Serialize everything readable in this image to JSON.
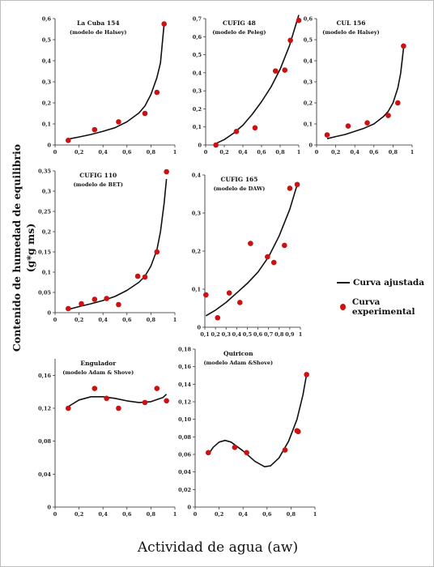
{
  "figure": {
    "ylabel_line1": "Contenido de humedad de equilibrio",
    "ylabel_line2": "(g*g ms)",
    "xlabel": "Actividad de agua (aw)",
    "legend": {
      "fit_label": "Curva ajustada",
      "exp_label": "Curva experimental",
      "line_color": "#111111",
      "point_color": "#cc1111"
    }
  },
  "chart_data": [
    {
      "type": "scatter",
      "title": "La Cuba 154",
      "subtitle": "(modelo de Halsey)",
      "xlim": [
        0,
        1
      ],
      "ylim": [
        0,
        0.6
      ],
      "xticks": [
        0,
        0.2,
        0.4,
        0.6,
        0.8,
        1
      ],
      "xtick_labels": [
        "0",
        "0,2",
        "0,4",
        "0,6",
        "0,8",
        "1"
      ],
      "yticks": [
        0,
        0.1,
        0.2,
        0.3,
        0.4,
        0.5,
        0.6
      ],
      "ytick_labels": [
        "0",
        "0,1",
        "0,2",
        "0,3",
        "0,4",
        "0,5",
        "0,6"
      ],
      "points": [
        [
          0.11,
          0.022
        ],
        [
          0.33,
          0.073
        ],
        [
          0.53,
          0.11
        ],
        [
          0.75,
          0.15
        ],
        [
          0.85,
          0.25
        ],
        [
          0.91,
          0.575
        ]
      ],
      "curve": [
        [
          0.11,
          0.028
        ],
        [
          0.2,
          0.038
        ],
        [
          0.3,
          0.05
        ],
        [
          0.4,
          0.065
        ],
        [
          0.5,
          0.082
        ],
        [
          0.6,
          0.11
        ],
        [
          0.7,
          0.152
        ],
        [
          0.75,
          0.185
        ],
        [
          0.8,
          0.24
        ],
        [
          0.85,
          0.32
        ],
        [
          0.88,
          0.39
        ],
        [
          0.91,
          0.575
        ]
      ]
    },
    {
      "type": "scatter",
      "title": "CUFIG 48",
      "subtitle": "(modelo de Peleg)",
      "xlim": [
        0,
        1
      ],
      "ylim": [
        0,
        0.7
      ],
      "xticks": [
        0,
        0.2,
        0.4,
        0.6,
        0.8,
        1
      ],
      "xtick_labels": [
        "0",
        "0,2",
        "0,4",
        "0,6",
        "0,8",
        "1"
      ],
      "yticks": [
        0,
        0.1,
        0.2,
        0.3,
        0.4,
        0.5,
        0.6,
        0.7
      ],
      "ytick_labels": [
        "0",
        "0,1",
        "0,2",
        "0,3",
        "0,4",
        "0,5",
        "0,6",
        "0,7"
      ],
      "points": [
        [
          0.11,
          0.0
        ],
        [
          0.33,
          0.075
        ],
        [
          0.53,
          0.095
        ],
        [
          0.75,
          0.41
        ],
        [
          0.85,
          0.415
        ],
        [
          0.91,
          0.58
        ],
        [
          1.0,
          0.69
        ]
      ],
      "curve": [
        [
          0.11,
          0.008
        ],
        [
          0.2,
          0.03
        ],
        [
          0.3,
          0.065
        ],
        [
          0.4,
          0.11
        ],
        [
          0.5,
          0.17
        ],
        [
          0.6,
          0.24
        ],
        [
          0.7,
          0.32
        ],
        [
          0.8,
          0.42
        ],
        [
          0.9,
          0.55
        ],
        [
          1.0,
          0.72
        ]
      ]
    },
    {
      "type": "scatter",
      "title": "CUL 156",
      "subtitle": "(modelo de Halsey)",
      "xlim": [
        0,
        1
      ],
      "ylim": [
        0,
        0.6
      ],
      "xticks": [
        0,
        0.2,
        0.4,
        0.6,
        0.8,
        1
      ],
      "xtick_labels": [
        "0",
        "0,2",
        "0,4",
        "0,6",
        "0,8",
        "1"
      ],
      "yticks": [
        0,
        0.1,
        0.2,
        0.3,
        0.4,
        0.5,
        0.6
      ],
      "ytick_labels": [
        "0",
        "0,1",
        "0,2",
        "0,3",
        "0,4",
        "0,5",
        "0,6"
      ],
      "points": [
        [
          0.11,
          0.048
        ],
        [
          0.33,
          0.09
        ],
        [
          0.53,
          0.105
        ],
        [
          0.75,
          0.14
        ],
        [
          0.85,
          0.2
        ],
        [
          0.91,
          0.47
        ]
      ],
      "curve": [
        [
          0.11,
          0.03
        ],
        [
          0.2,
          0.04
        ],
        [
          0.3,
          0.05
        ],
        [
          0.4,
          0.065
        ],
        [
          0.5,
          0.08
        ],
        [
          0.6,
          0.1
        ],
        [
          0.7,
          0.135
        ],
        [
          0.75,
          0.16
        ],
        [
          0.8,
          0.2
        ],
        [
          0.85,
          0.27
        ],
        [
          0.88,
          0.34
        ],
        [
          0.91,
          0.46
        ]
      ]
    },
    {
      "type": "scatter",
      "title": "CUFIG 110",
      "subtitle": "(modelo de BET)",
      "xlim": [
        0,
        1
      ],
      "ylim": [
        0,
        0.35
      ],
      "xticks": [
        0,
        0.2,
        0.4,
        0.6,
        0.8,
        1
      ],
      "xtick_labels": [
        "0",
        "0,2",
        "0,4",
        "0,6",
        "0,8",
        "1"
      ],
      "yticks": [
        0,
        0.05,
        0.1,
        0.15,
        0.2,
        0.25,
        0.3,
        0.35
      ],
      "ytick_labels": [
        "0",
        "0,05",
        "0,1",
        "0,15",
        "0,2",
        "0,25",
        "0,3",
        "0,35"
      ],
      "points": [
        [
          0.11,
          0.01
        ],
        [
          0.22,
          0.022
        ],
        [
          0.33,
          0.033
        ],
        [
          0.43,
          0.035
        ],
        [
          0.53,
          0.02
        ],
        [
          0.69,
          0.09
        ],
        [
          0.75,
          0.088
        ],
        [
          0.85,
          0.15
        ],
        [
          0.93,
          0.348
        ]
      ],
      "curve": [
        [
          0.11,
          0.008
        ],
        [
          0.2,
          0.015
        ],
        [
          0.3,
          0.022
        ],
        [
          0.4,
          0.03
        ],
        [
          0.5,
          0.04
        ],
        [
          0.6,
          0.055
        ],
        [
          0.7,
          0.075
        ],
        [
          0.75,
          0.09
        ],
        [
          0.8,
          0.115
        ],
        [
          0.85,
          0.155
        ],
        [
          0.88,
          0.2
        ],
        [
          0.91,
          0.27
        ],
        [
          0.93,
          0.33
        ]
      ]
    },
    {
      "type": "scatter",
      "title": "CUFIG 165",
      "subtitle": "(modelo de DAW)",
      "xlim": [
        0.1,
        1
      ],
      "ylim": [
        0,
        0.4
      ],
      "xticks": [
        0.1,
        0.2,
        0.3,
        0.4,
        0.5,
        0.6,
        0.7,
        0.8,
        0.9,
        1
      ],
      "xtick_labels": [
        "0,1",
        "0,2",
        "0,3",
        "0,4",
        "0,5",
        "0,6",
        "0,7",
        "0,8",
        "0,9",
        "1"
      ],
      "yticks": [
        0,
        0.1,
        0.2,
        0.3,
        0.4
      ],
      "ytick_labels": [
        "0",
        "0,1",
        "0,2",
        "0,3",
        "0,4"
      ],
      "points": [
        [
          0.11,
          0.085
        ],
        [
          0.22,
          0.025
        ],
        [
          0.33,
          0.09
        ],
        [
          0.43,
          0.065
        ],
        [
          0.53,
          0.22
        ],
        [
          0.69,
          0.185
        ],
        [
          0.75,
          0.17
        ],
        [
          0.85,
          0.215
        ],
        [
          0.9,
          0.365
        ],
        [
          0.97,
          0.375
        ]
      ],
      "curve": [
        [
          0.11,
          0.03
        ],
        [
          0.2,
          0.045
        ],
        [
          0.3,
          0.065
        ],
        [
          0.4,
          0.09
        ],
        [
          0.5,
          0.115
        ],
        [
          0.6,
          0.145
        ],
        [
          0.7,
          0.185
        ],
        [
          0.8,
          0.24
        ],
        [
          0.9,
          0.31
        ],
        [
          0.97,
          0.375
        ]
      ]
    },
    {
      "type": "scatter",
      "title": "Engulador",
      "subtitle": "(modelo Adam & Shove)",
      "xlim": [
        0,
        1
      ],
      "ylim": [
        0,
        0.18
      ],
      "xticks": [
        0,
        0.2,
        0.4,
        0.6,
        0.8,
        1
      ],
      "xtick_labels": [
        "0",
        "0,2",
        "0,4",
        "0,6",
        "0,8",
        "1"
      ],
      "yticks": [
        0,
        0.04,
        0.08,
        0.12,
        0.16
      ],
      "ytick_labels": [
        "0",
        "0,04",
        "0,08",
        "0,12",
        "0,16"
      ],
      "points": [
        [
          0.11,
          0.12
        ],
        [
          0.33,
          0.144
        ],
        [
          0.43,
          0.132
        ],
        [
          0.53,
          0.12
        ],
        [
          0.75,
          0.127
        ],
        [
          0.85,
          0.144
        ],
        [
          0.93,
          0.129
        ]
      ],
      "curve": [
        [
          0.11,
          0.122
        ],
        [
          0.2,
          0.13
        ],
        [
          0.3,
          0.134
        ],
        [
          0.4,
          0.134
        ],
        [
          0.5,
          0.132
        ],
        [
          0.6,
          0.129
        ],
        [
          0.7,
          0.127
        ],
        [
          0.8,
          0.128
        ],
        [
          0.9,
          0.133
        ],
        [
          0.93,
          0.137
        ]
      ]
    },
    {
      "type": "scatter",
      "title": "Quiricon",
      "subtitle": "(modelo Adam &Shove)",
      "xlim": [
        0,
        1
      ],
      "ylim": [
        0,
        0.18
      ],
      "xticks": [
        0,
        0.2,
        0.4,
        0.6,
        0.8,
        1
      ],
      "xtick_labels": [
        "0",
        "0,2",
        "0,4",
        "0,6",
        "0,8",
        "1"
      ],
      "yticks": [
        0,
        0.02,
        0.04,
        0.06,
        0.08,
        0.1,
        0.12,
        0.14,
        0.16,
        0.18
      ],
      "ytick_labels": [
        "0",
        "0,02",
        "0,04",
        "0,06",
        "0,08",
        "0,10",
        "0,12",
        "0,14",
        "0,16",
        "0,18"
      ],
      "points": [
        [
          0.11,
          0.062
        ],
        [
          0.33,
          0.068
        ],
        [
          0.43,
          0.062
        ],
        [
          0.75,
          0.065
        ],
        [
          0.85,
          0.087
        ],
        [
          0.86,
          0.086
        ],
        [
          0.93,
          0.151
        ]
      ],
      "curve": [
        [
          0.11,
          0.06
        ],
        [
          0.15,
          0.068
        ],
        [
          0.2,
          0.074
        ],
        [
          0.25,
          0.076
        ],
        [
          0.3,
          0.074
        ],
        [
          0.4,
          0.064
        ],
        [
          0.5,
          0.052
        ],
        [
          0.58,
          0.046
        ],
        [
          0.63,
          0.047
        ],
        [
          0.7,
          0.056
        ],
        [
          0.78,
          0.075
        ],
        [
          0.85,
          0.1
        ],
        [
          0.9,
          0.128
        ],
        [
          0.93,
          0.151
        ]
      ]
    }
  ]
}
